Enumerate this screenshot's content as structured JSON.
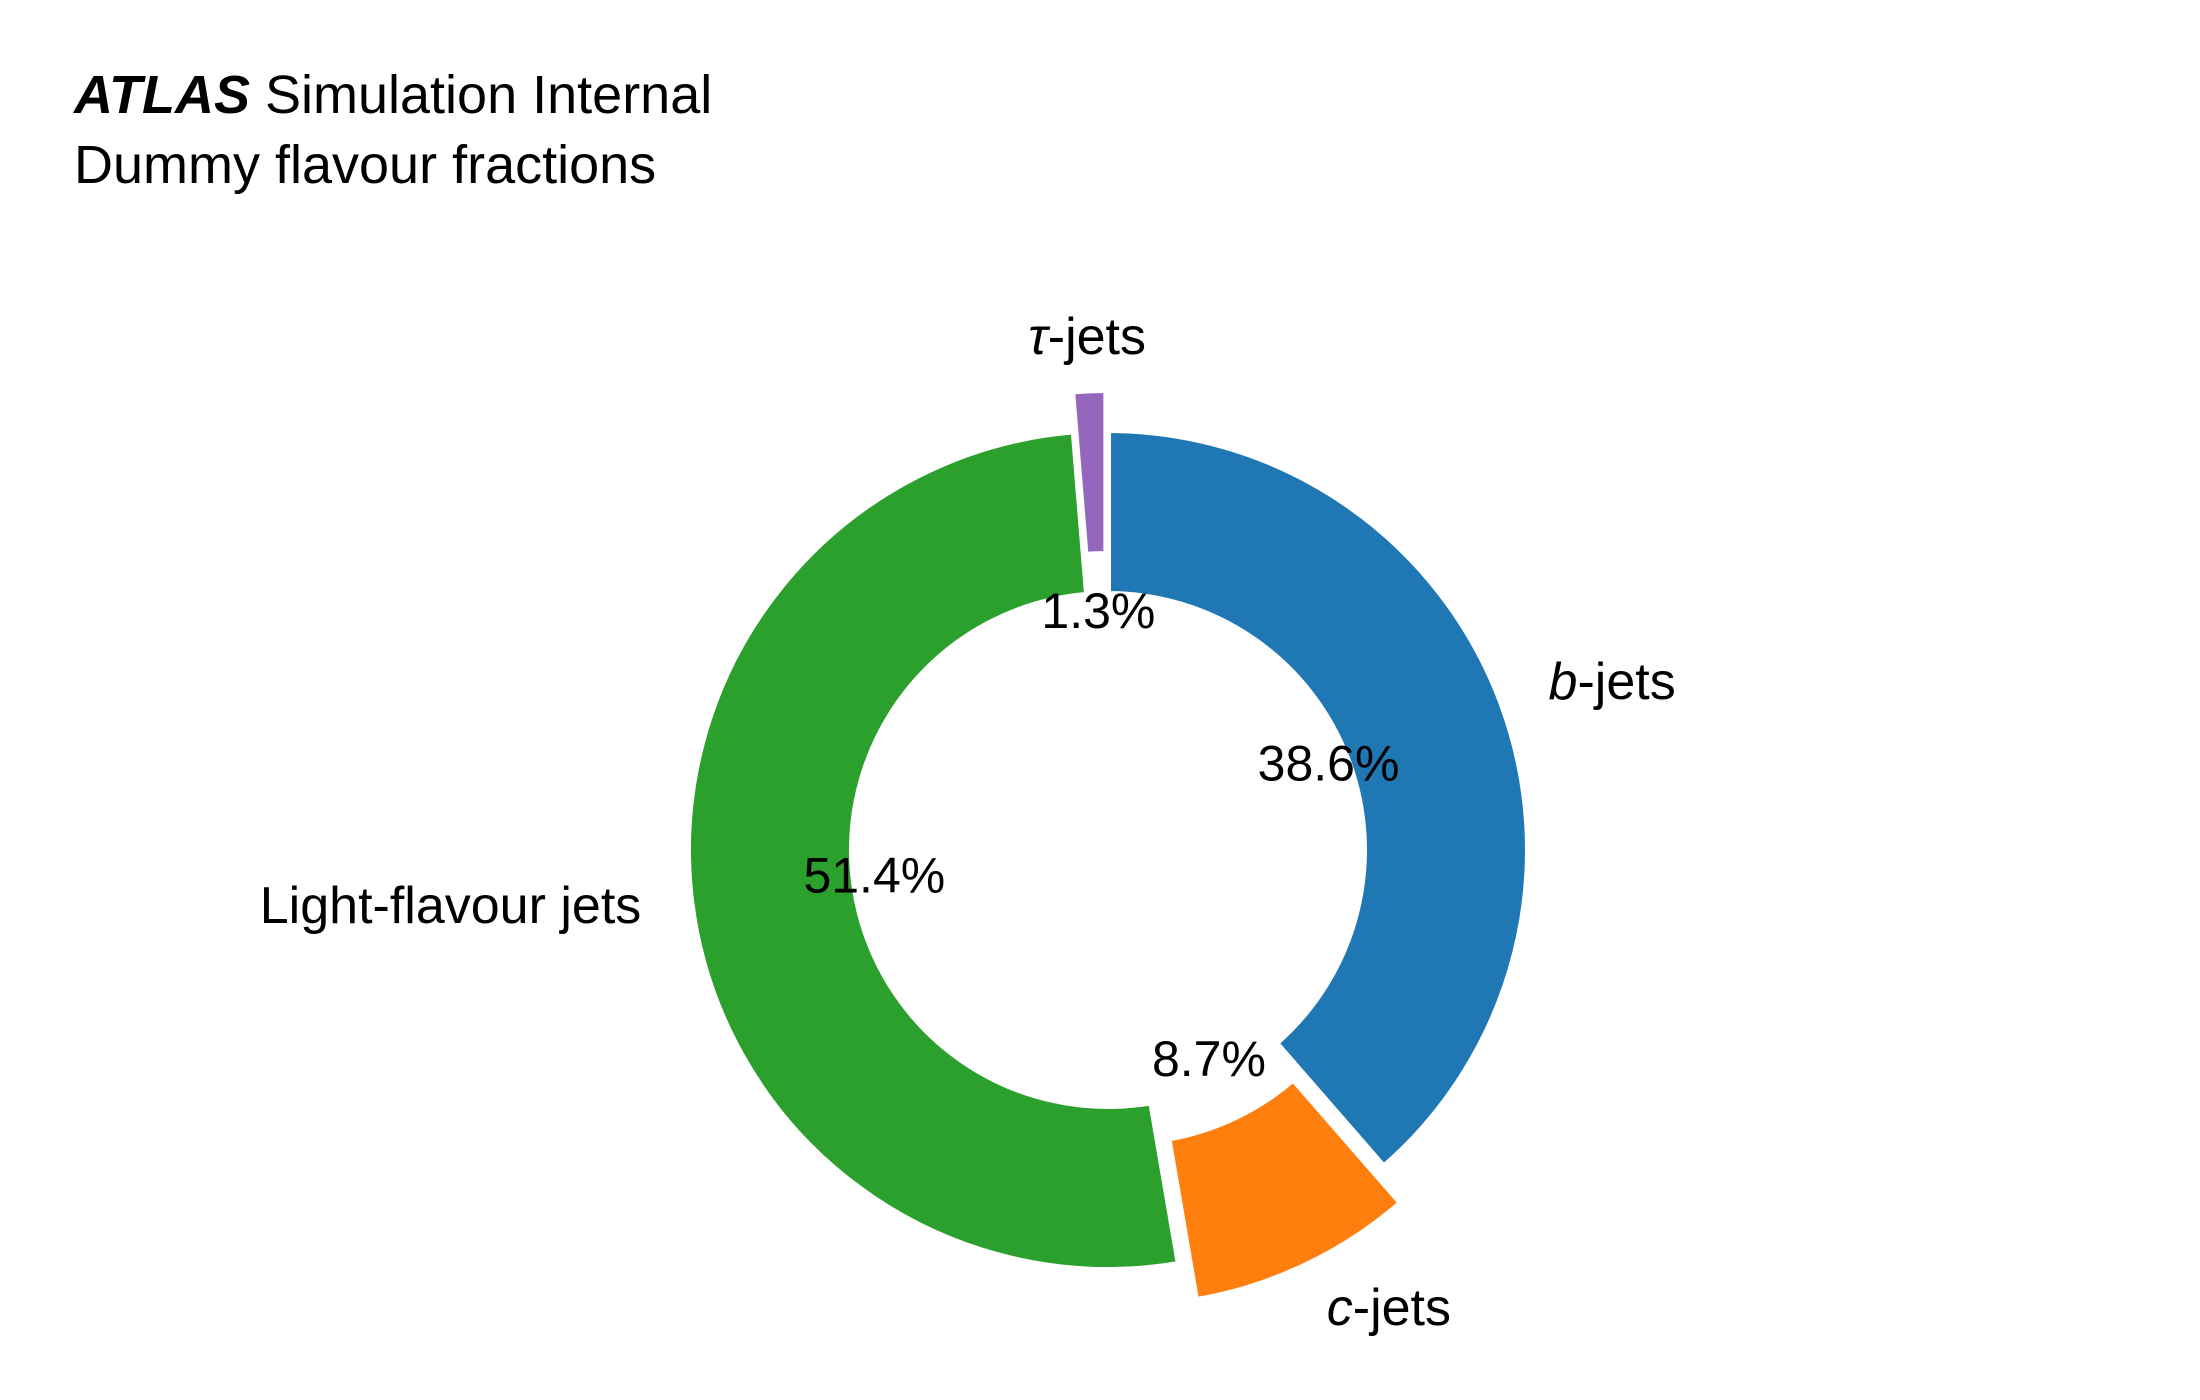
{
  "header": {
    "experiment": "ATLAS",
    "status": "Simulation Internal",
    "subtitle": "Dummy flavour fractions"
  },
  "chart_data": {
    "type": "pie",
    "style": "donut",
    "slices": [
      {
        "label_prefix": "b",
        "label_suffix": "-jets",
        "value": 38.6,
        "pct_text": "38.6%",
        "color": "#1f77b4",
        "exploded": false
      },
      {
        "label_prefix": "c",
        "label_suffix": "-jets",
        "value": 8.7,
        "pct_text": "8.7%",
        "color": "#ff7f0e",
        "exploded": true
      },
      {
        "label_prefix": "",
        "label_suffix": "Light-flavour jets",
        "value": 51.4,
        "pct_text": "51.4%",
        "color": "#2ca02c",
        "exploded": false
      },
      {
        "label_prefix": "τ",
        "label_suffix": "-jets",
        "value": 1.3,
        "pct_text": "1.3%",
        "color": "#9467bd",
        "exploded": true
      }
    ]
  }
}
